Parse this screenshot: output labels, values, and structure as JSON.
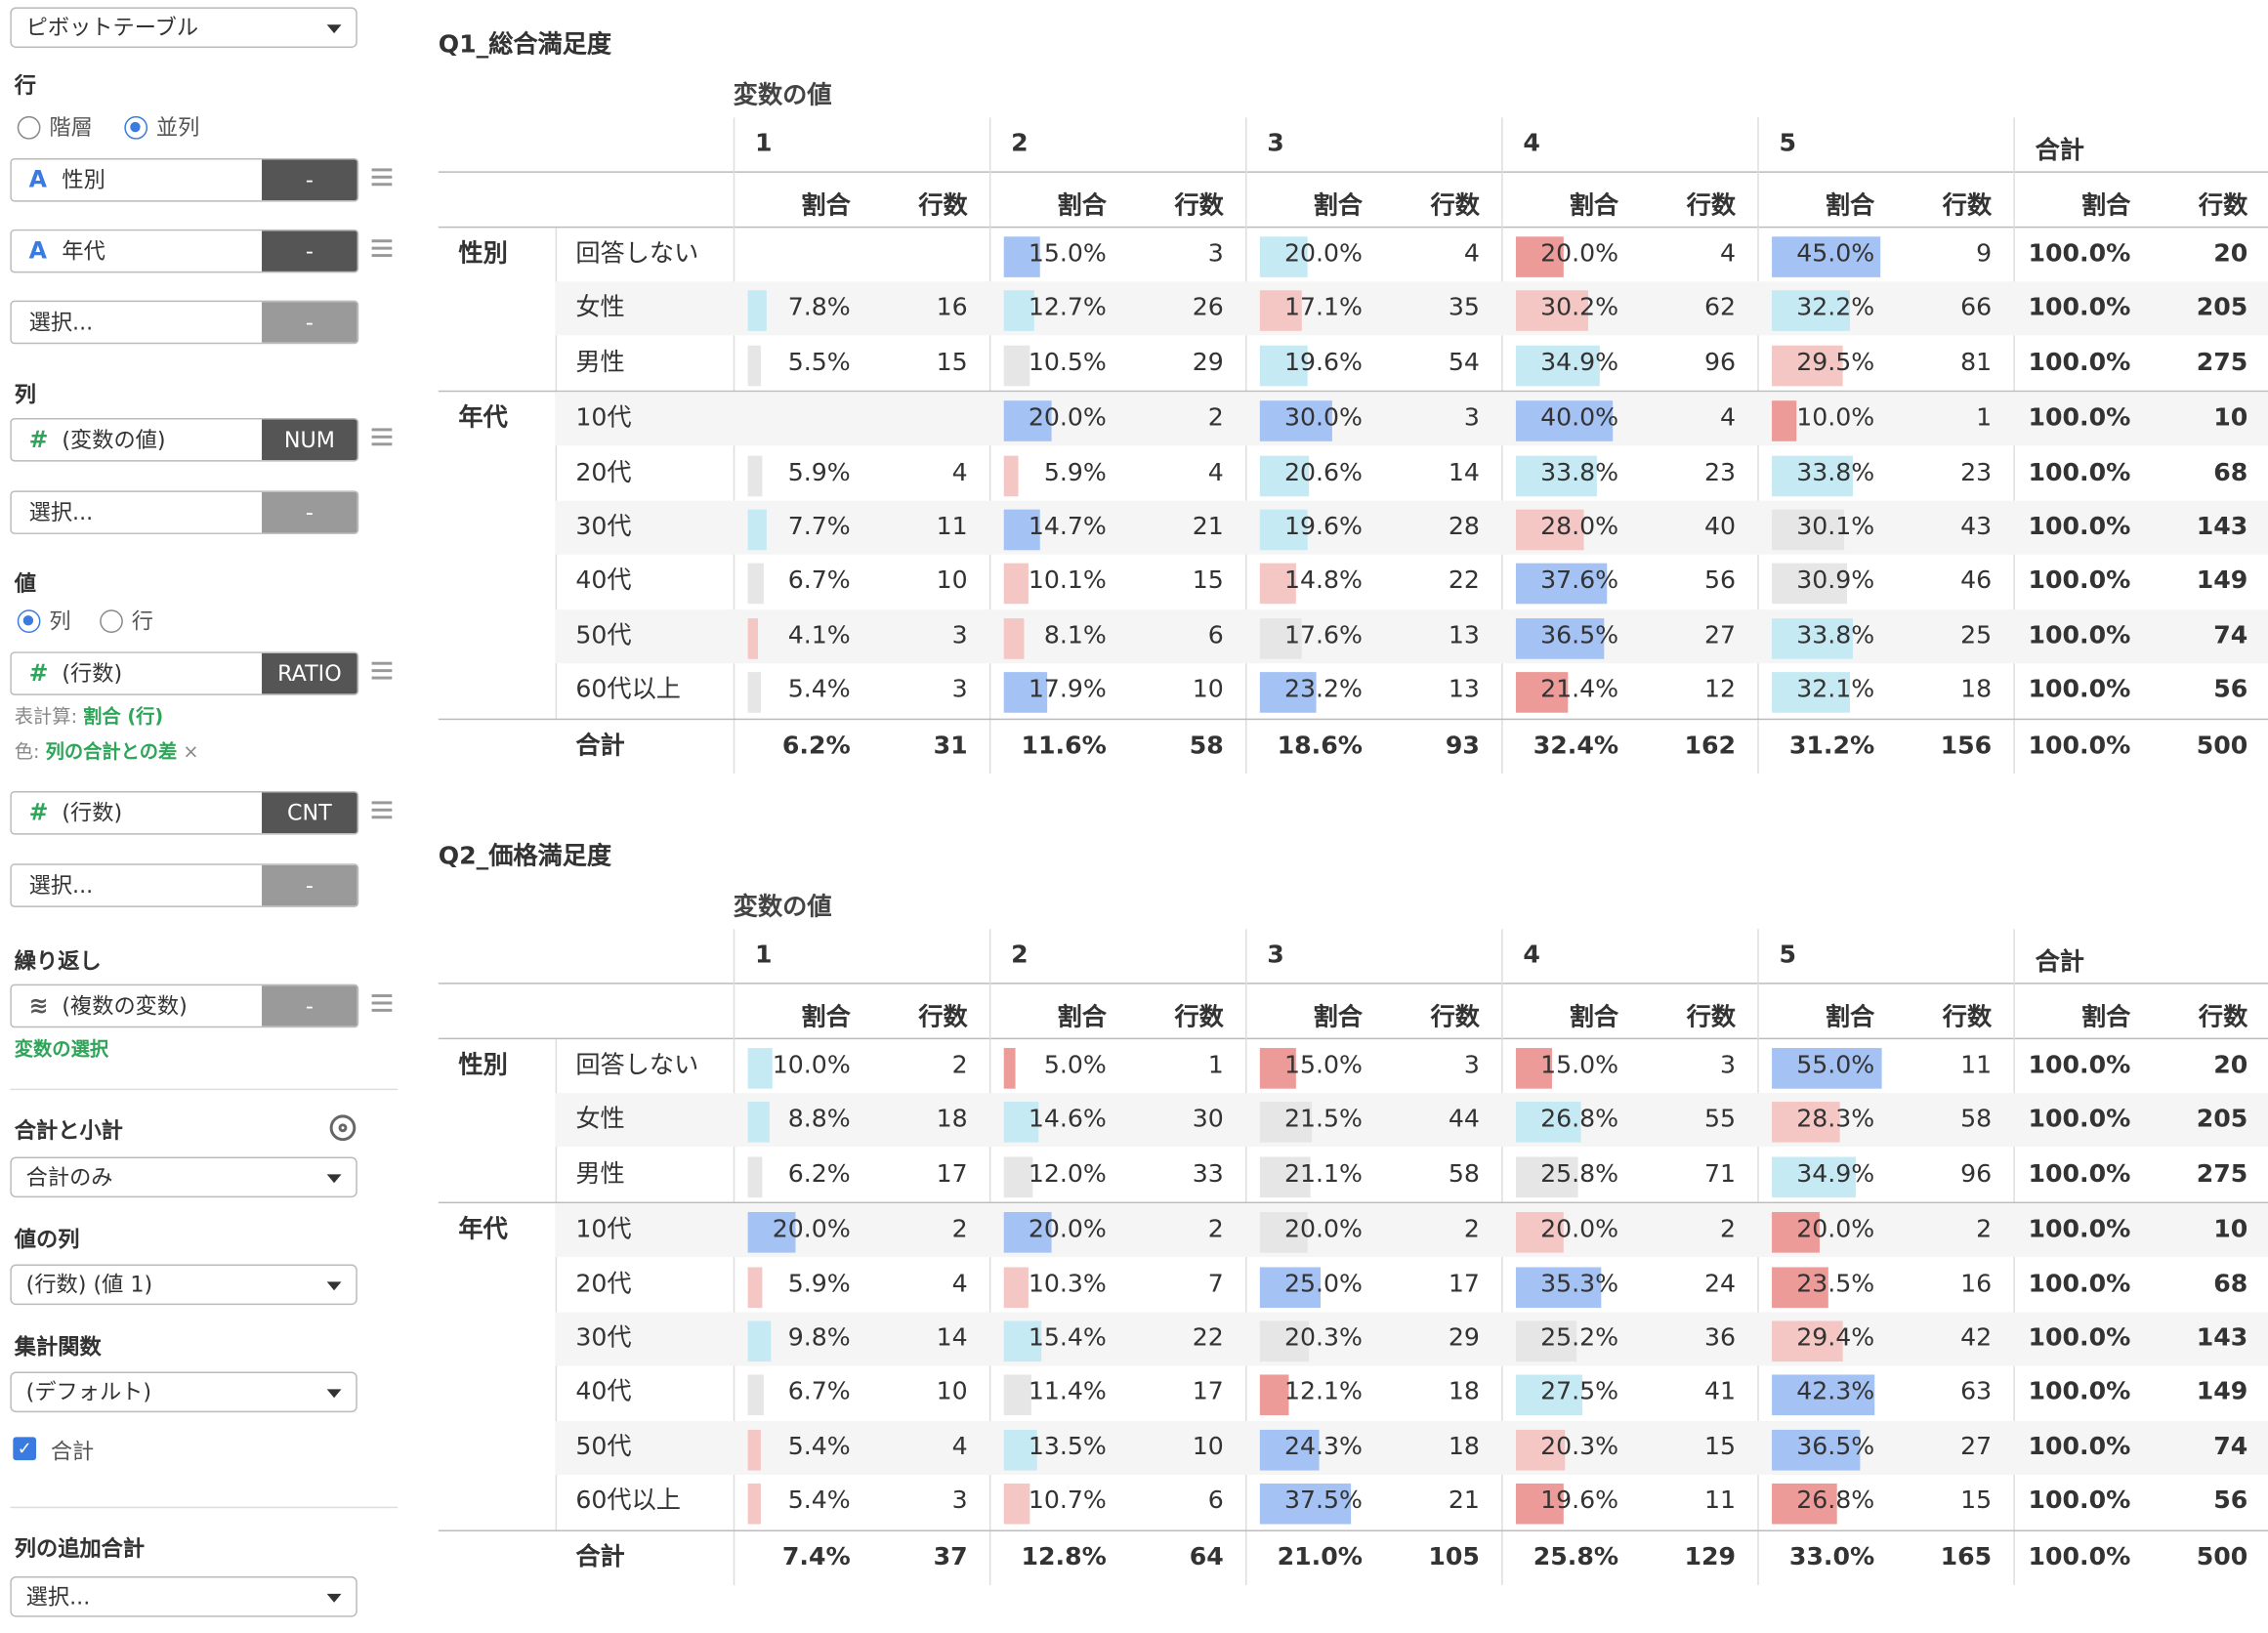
{
  "sidebar": {
    "view_select": "ピボットテーブル",
    "rows_label": "行",
    "radio_hier": "階層",
    "radio_parallel": "並列",
    "row_vars": [
      {
        "icon": "A",
        "name": "性別",
        "tag": "-"
      },
      {
        "icon": "A",
        "name": "年代",
        "tag": "-"
      }
    ],
    "row_select": "選択...",
    "row_select_tag": "-",
    "cols_label": "列",
    "col_var": {
      "icon": "#",
      "name": "(変数の値)",
      "tag": "NUM"
    },
    "col_select": "選択...",
    "col_select_tag": "-",
    "vals_label": "値",
    "radio_col": "列",
    "radio_row": "行",
    "val_var1": {
      "icon": "#",
      "name": "(行数)",
      "tag": "RATIO"
    },
    "calc_prefix": "表計算: ",
    "calc_value": "割合 (行)",
    "color_prefix": "色: ",
    "color_value": "列の合計との差",
    "color_close": "×",
    "val_var2": {
      "icon": "#",
      "name": "(行数)",
      "tag": "CNT"
    },
    "val_select": "選択...",
    "val_select_tag": "-",
    "repeat_label": "繰り返し",
    "repeat_var": {
      "icon": "layers-icon",
      "name": "(複数の変数)",
      "tag": "-"
    },
    "var_select_link": "変数の選択",
    "totals_label": "合計と小計",
    "totals_select": "合計のみ",
    "valcol_label": "値の列",
    "valcol_select": "(行数) (値 1)",
    "agg_label": "集計関数",
    "agg_select": "(デフォルト)",
    "total_check": "合計",
    "addtotal_label": "列の追加合計",
    "addtotal_select": "選択..."
  },
  "tables": [
    {
      "title": "Q1_総合満足度",
      "var_label": "変数の値",
      "col_groups": [
        "1",
        "2",
        "3",
        "4",
        "5",
        "合計"
      ],
      "sub_headers": [
        "割合",
        "行数"
      ],
      "groups": [
        {
          "name": "性別",
          "rows": [
            {
              "label": "回答しない",
              "cells": [
                [
                  "",
                  ""
                ],
                [
                  "15.0%",
                  "3"
                ],
                [
                  "20.0%",
                  "4"
                ],
                [
                  "20.0%",
                  "4"
                ],
                [
                  "45.0%",
                  "9"
                ],
                [
                  "100.0%",
                  "20"
                ]
              ]
            },
            {
              "label": "女性",
              "cells": [
                [
                  "7.8%",
                  "16"
                ],
                [
                  "12.7%",
                  "26"
                ],
                [
                  "17.1%",
                  "35"
                ],
                [
                  "30.2%",
                  "62"
                ],
                [
                  "32.2%",
                  "66"
                ],
                [
                  "100.0%",
                  "205"
                ]
              ]
            },
            {
              "label": "男性",
              "cells": [
                [
                  "5.5%",
                  "15"
                ],
                [
                  "10.5%",
                  "29"
                ],
                [
                  "19.6%",
                  "54"
                ],
                [
                  "34.9%",
                  "96"
                ],
                [
                  "29.5%",
                  "81"
                ],
                [
                  "100.0%",
                  "275"
                ]
              ]
            }
          ]
        },
        {
          "name": "年代",
          "rows": [
            {
              "label": "10代",
              "cells": [
                [
                  "",
                  ""
                ],
                [
                  "20.0%",
                  "2"
                ],
                [
                  "30.0%",
                  "3"
                ],
                [
                  "40.0%",
                  "4"
                ],
                [
                  "10.0%",
                  "1"
                ],
                [
                  "100.0%",
                  "10"
                ]
              ]
            },
            {
              "label": "20代",
              "cells": [
                [
                  "5.9%",
                  "4"
                ],
                [
                  "5.9%",
                  "4"
                ],
                [
                  "20.6%",
                  "14"
                ],
                [
                  "33.8%",
                  "23"
                ],
                [
                  "33.8%",
                  "23"
                ],
                [
                  "100.0%",
                  "68"
                ]
              ]
            },
            {
              "label": "30代",
              "cells": [
                [
                  "7.7%",
                  "11"
                ],
                [
                  "14.7%",
                  "21"
                ],
                [
                  "19.6%",
                  "28"
                ],
                [
                  "28.0%",
                  "40"
                ],
                [
                  "30.1%",
                  "43"
                ],
                [
                  "100.0%",
                  "143"
                ]
              ]
            },
            {
              "label": "40代",
              "cells": [
                [
                  "6.7%",
                  "10"
                ],
                [
                  "10.1%",
                  "15"
                ],
                [
                  "14.8%",
                  "22"
                ],
                [
                  "37.6%",
                  "56"
                ],
                [
                  "30.9%",
                  "46"
                ],
                [
                  "100.0%",
                  "149"
                ]
              ]
            },
            {
              "label": "50代",
              "cells": [
                [
                  "4.1%",
                  "3"
                ],
                [
                  "8.1%",
                  "6"
                ],
                [
                  "17.6%",
                  "13"
                ],
                [
                  "36.5%",
                  "27"
                ],
                [
                  "33.8%",
                  "25"
                ],
                [
                  "100.0%",
                  "74"
                ]
              ]
            },
            {
              "label": "60代以上",
              "cells": [
                [
                  "5.4%",
                  "3"
                ],
                [
                  "17.9%",
                  "10"
                ],
                [
                  "23.2%",
                  "13"
                ],
                [
                  "21.4%",
                  "12"
                ],
                [
                  "32.1%",
                  "18"
                ],
                [
                  "100.0%",
                  "56"
                ]
              ]
            }
          ]
        }
      ],
      "total": {
        "label": "合計",
        "cells": [
          [
            "6.2%",
            "31"
          ],
          [
            "11.6%",
            "58"
          ],
          [
            "18.6%",
            "93"
          ],
          [
            "32.4%",
            "162"
          ],
          [
            "31.2%",
            "156"
          ],
          [
            "100.0%",
            "500"
          ]
        ]
      }
    },
    {
      "title": "Q2_価格満足度",
      "var_label": "変数の値",
      "col_groups": [
        "1",
        "2",
        "3",
        "4",
        "5",
        "合計"
      ],
      "sub_headers": [
        "割合",
        "行数"
      ],
      "groups": [
        {
          "name": "性別",
          "rows": [
            {
              "label": "回答しない",
              "cells": [
                [
                  "10.0%",
                  "2"
                ],
                [
                  "5.0%",
                  "1"
                ],
                [
                  "15.0%",
                  "3"
                ],
                [
                  "15.0%",
                  "3"
                ],
                [
                  "55.0%",
                  "11"
                ],
                [
                  "100.0%",
                  "20"
                ]
              ]
            },
            {
              "label": "女性",
              "cells": [
                [
                  "8.8%",
                  "18"
                ],
                [
                  "14.6%",
                  "30"
                ],
                [
                  "21.5%",
                  "44"
                ],
                [
                  "26.8%",
                  "55"
                ],
                [
                  "28.3%",
                  "58"
                ],
                [
                  "100.0%",
                  "205"
                ]
              ]
            },
            {
              "label": "男性",
              "cells": [
                [
                  "6.2%",
                  "17"
                ],
                [
                  "12.0%",
                  "33"
                ],
                [
                  "21.1%",
                  "58"
                ],
                [
                  "25.8%",
                  "71"
                ],
                [
                  "34.9%",
                  "96"
                ],
                [
                  "100.0%",
                  "275"
                ]
              ]
            }
          ]
        },
        {
          "name": "年代",
          "rows": [
            {
              "label": "10代",
              "cells": [
                [
                  "20.0%",
                  "2"
                ],
                [
                  "20.0%",
                  "2"
                ],
                [
                  "20.0%",
                  "2"
                ],
                [
                  "20.0%",
                  "2"
                ],
                [
                  "20.0%",
                  "2"
                ],
                [
                  "100.0%",
                  "10"
                ]
              ]
            },
            {
              "label": "20代",
              "cells": [
                [
                  "5.9%",
                  "4"
                ],
                [
                  "10.3%",
                  "7"
                ],
                [
                  "25.0%",
                  "17"
                ],
                [
                  "35.3%",
                  "24"
                ],
                [
                  "23.5%",
                  "16"
                ],
                [
                  "100.0%",
                  "68"
                ]
              ]
            },
            {
              "label": "30代",
              "cells": [
                [
                  "9.8%",
                  "14"
                ],
                [
                  "15.4%",
                  "22"
                ],
                [
                  "20.3%",
                  "29"
                ],
                [
                  "25.2%",
                  "36"
                ],
                [
                  "29.4%",
                  "42"
                ],
                [
                  "100.0%",
                  "143"
                ]
              ]
            },
            {
              "label": "40代",
              "cells": [
                [
                  "6.7%",
                  "10"
                ],
                [
                  "11.4%",
                  "17"
                ],
                [
                  "12.1%",
                  "18"
                ],
                [
                  "27.5%",
                  "41"
                ],
                [
                  "42.3%",
                  "63"
                ],
                [
                  "100.0%",
                  "149"
                ]
              ]
            },
            {
              "label": "50代",
              "cells": [
                [
                  "5.4%",
                  "4"
                ],
                [
                  "13.5%",
                  "10"
                ],
                [
                  "24.3%",
                  "18"
                ],
                [
                  "20.3%",
                  "15"
                ],
                [
                  "36.5%",
                  "27"
                ],
                [
                  "100.0%",
                  "74"
                ]
              ]
            },
            {
              "label": "60代以上",
              "cells": [
                [
                  "5.4%",
                  "3"
                ],
                [
                  "10.7%",
                  "6"
                ],
                [
                  "37.5%",
                  "21"
                ],
                [
                  "19.6%",
                  "11"
                ],
                [
                  "26.8%",
                  "15"
                ],
                [
                  "100.0%",
                  "56"
                ]
              ]
            }
          ]
        }
      ],
      "total": {
        "label": "合計",
        "cells": [
          [
            "7.4%",
            "37"
          ],
          [
            "12.8%",
            "64"
          ],
          [
            "21.0%",
            "105"
          ],
          [
            "25.8%",
            "129"
          ],
          [
            "33.0%",
            "165"
          ],
          [
            "100.0%",
            "500"
          ]
        ]
      }
    }
  ],
  "colors": {
    "blue": "#a4c2f4",
    "light_blue": "#c6eaf4",
    "gray": "#e6e6e6",
    "light_red": "#f4c7c5",
    "red": "#ec9b98"
  }
}
